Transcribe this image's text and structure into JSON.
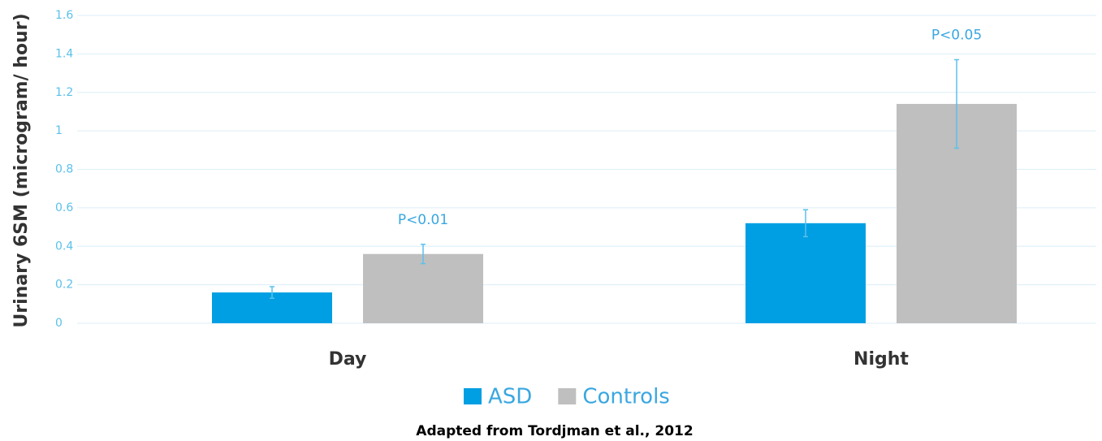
{
  "chart_data": {
    "type": "bar",
    "ylabel": "Urinary 6SM (microgram/ hour)",
    "categories": [
      "Day",
      "Night"
    ],
    "series": [
      {
        "name": "ASD",
        "color": "#009fe3",
        "values": [
          0.16,
          0.52
        ],
        "errors": [
          0.03,
          0.07
        ]
      },
      {
        "name": "Controls",
        "color": "#bfbfbf",
        "values": [
          0.36,
          1.14
        ],
        "errors": [
          0.05,
          0.23
        ]
      }
    ],
    "annotations": [
      "P<0.01",
      "P<0.05"
    ],
    "ylim": [
      0,
      1.6
    ],
    "yticks": [
      0,
      0.2,
      0.4,
      0.6,
      0.8,
      1,
      1.2,
      1.4,
      1.6
    ],
    "grid": true,
    "legend": "bottom",
    "caption": "Adapted from Tordjman et al., 2012"
  }
}
